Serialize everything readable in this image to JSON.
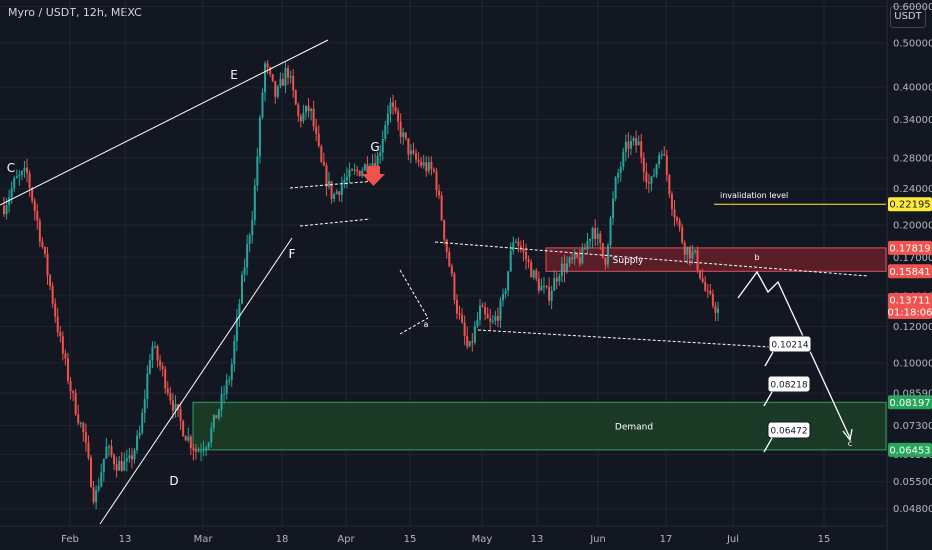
{
  "header": {
    "symbol_title": "Myro / USDT, 12h, MEXC",
    "currency_button": "USDT"
  },
  "colors": {
    "bg": "#131722",
    "up": "#26a69a",
    "down": "#ef5350",
    "grid": "#1f2430",
    "axis_text": "#b2b5be",
    "supply_fill": "#5a1e28",
    "demand_fill": "#1a3a25",
    "invalidation": "#ffeb3b",
    "marker_red": "#ef5350"
  },
  "chart_data": {
    "type": "candlestick",
    "price_scale": "log",
    "ylim": [
      0.044,
      0.62
    ],
    "y_ticks": [
      "0.60000",
      "0.50000",
      "0.40000",
      "0.34000",
      "0.28000",
      "0.24000",
      "0.20000",
      "0.17000",
      "0.14000",
      "0.12000",
      "0.10000",
      "0.08590",
      "0.07300",
      "0.06310",
      "0.05500",
      "0.04800"
    ],
    "x_ticks": [
      "Feb",
      "13",
      "Mar",
      "18",
      "Apr",
      "15",
      "May",
      "13",
      "Jun",
      "17",
      "Jul",
      "15"
    ],
    "price_labels": [
      {
        "value": "0.22195",
        "type": "invalidation"
      },
      {
        "value": "0.17819",
        "type": "supply"
      },
      {
        "value": "0.15841",
        "type": "supply"
      },
      {
        "value": "0.13711",
        "type": "current",
        "countdown": "01:18:06"
      },
      {
        "value": "0.08197",
        "type": "demand"
      },
      {
        "value": "0.06453",
        "type": "demand"
      }
    ],
    "zones": [
      {
        "label": "Supply",
        "low": 0.15841,
        "high": 0.17819
      },
      {
        "label": "Demand",
        "low": 0.06453,
        "high": 0.08197
      }
    ],
    "levels": [
      {
        "label": "invalidation level",
        "value": 0.22195
      }
    ],
    "wave_labels": [
      "C",
      "E",
      "F",
      "G",
      "D",
      "a",
      "b",
      "c"
    ],
    "callouts": [
      "0.10214",
      "0.08218",
      "0.06472"
    ],
    "price_path": [
      0.22,
      0.25,
      0.26,
      0.2,
      0.15,
      0.11,
      0.085,
      0.07,
      0.05,
      0.065,
      0.06,
      0.06,
      0.07,
      0.11,
      0.095,
      0.08,
      0.07,
      0.064,
      0.068,
      0.08,
      0.095,
      0.15,
      0.22,
      0.45,
      0.38,
      0.44,
      0.34,
      0.36,
      0.27,
      0.23,
      0.25,
      0.26,
      0.27,
      0.28,
      0.37,
      0.32,
      0.28,
      0.27,
      0.26,
      0.18,
      0.13,
      0.105,
      0.13,
      0.12,
      0.135,
      0.19,
      0.17,
      0.15,
      0.14,
      0.16,
      0.165,
      0.17,
      0.2,
      0.165,
      0.25,
      0.3,
      0.3,
      0.24,
      0.3,
      0.22,
      0.18,
      0.17,
      0.14,
      0.13
    ]
  }
}
